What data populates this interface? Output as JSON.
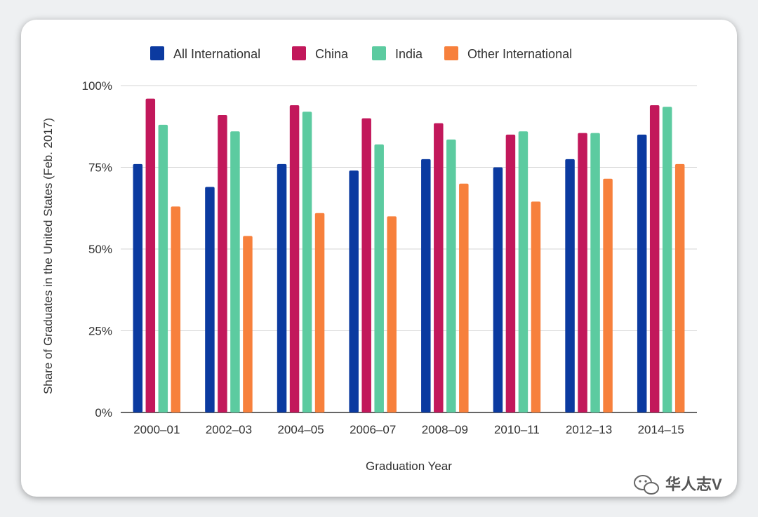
{
  "chart_data": {
    "type": "bar",
    "categories": [
      "2000–01",
      "2002–03",
      "2004–05",
      "2006–07",
      "2008–09",
      "2010–11",
      "2012–13",
      "2014–15"
    ],
    "series": [
      {
        "name": "All International",
        "color": "#0b3aa0",
        "values": [
          76,
          69,
          76,
          74,
          77.5,
          75,
          77.5,
          85
        ]
      },
      {
        "name": "China",
        "color": "#c2185b",
        "values": [
          96,
          91,
          94,
          90,
          88.5,
          85,
          85.5,
          94
        ]
      },
      {
        "name": "India",
        "color": "#5ccba0",
        "values": [
          88,
          86,
          92,
          82,
          83.5,
          86,
          85.5,
          93.5
        ]
      },
      {
        "name": "Other International",
        "color": "#f7803c",
        "values": [
          63,
          54,
          61,
          60,
          70,
          64.5,
          71.5,
          76
        ]
      }
    ],
    "yticks": [
      "0%",
      "25%",
      "50%",
      "75%",
      "100%"
    ],
    "ylim": [
      0,
      100
    ],
    "xlabel": "Graduation Year",
    "ylabel": "Share of Graduates in the United States (Feb. 2017)",
    "legend_position": "top",
    "grid": true
  },
  "watermark": {
    "icon": "wechat-icon",
    "text": "华人志V"
  }
}
